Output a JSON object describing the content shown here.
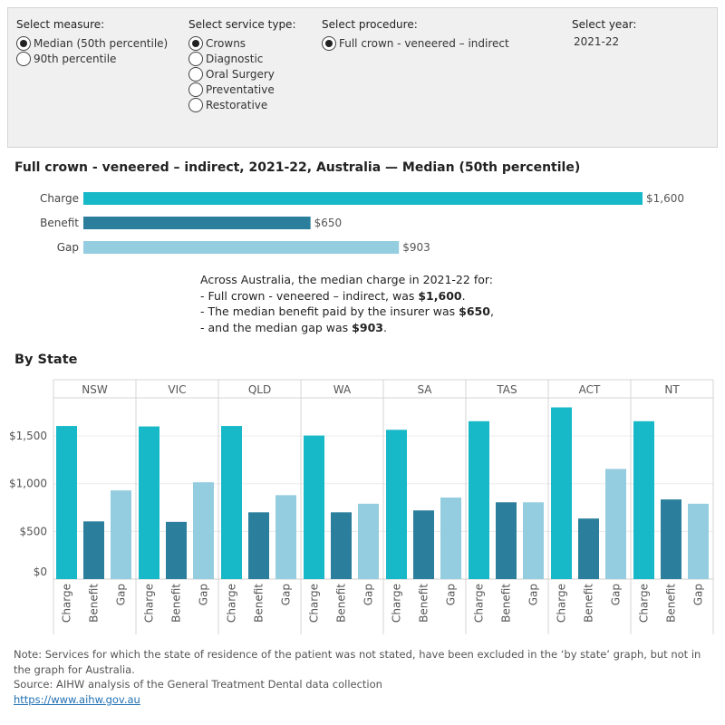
{
  "filters": {
    "measure": {
      "title": "Select measure:",
      "options": [
        "Median (50th percentile)",
        "90th percentile"
      ],
      "selected": 0
    },
    "service_type": {
      "title": "Select service type:",
      "options": [
        "Crowns",
        "Diagnostic",
        "Oral Surgery",
        "Preventative",
        "Restorative"
      ],
      "selected": 0
    },
    "procedure": {
      "title": "Select procedure:",
      "options": [
        "Full crown - veneered – indirect"
      ],
      "selected": 0
    },
    "year": {
      "title": "Select year:",
      "value": "2021-22"
    }
  },
  "colors": {
    "charge": "#17b8c8",
    "benefit": "#2b7f9c",
    "gap": "#95cde0"
  },
  "chart_data": [
    {
      "type": "bar",
      "orientation": "horizontal",
      "title": "Full crown - veneered – indirect, 2021-22, Australia  — Median (50th percentile)",
      "categories": [
        "Charge",
        "Benefit",
        "Gap"
      ],
      "values": [
        1600,
        650,
        903
      ],
      "labels": [
        "$1,600",
        "$650",
        "$903"
      ],
      "xlim": [
        0,
        1600
      ]
    },
    {
      "type": "bar",
      "title": "By State",
      "panels": [
        "NSW",
        "VIC",
        "QLD",
        "WA",
        "SA",
        "TAS",
        "ACT",
        "NT"
      ],
      "categories": [
        "Charge",
        "Benefit",
        "Gap"
      ],
      "values": [
        [
          1605,
          605,
          930
        ],
        [
          1600,
          600,
          1015
        ],
        [
          1605,
          700,
          880
        ],
        [
          1505,
          700,
          790
        ],
        [
          1565,
          720,
          855
        ],
        [
          1655,
          805,
          805
        ],
        [
          1800,
          635,
          1155
        ],
        [
          1655,
          835,
          790
        ]
      ],
      "ylim": [
        0,
        1900
      ],
      "yticks": [
        0,
        500,
        1000,
        1500
      ],
      "ytick_labels": [
        "$0",
        "$500",
        "$1,000",
        "$1,500"
      ],
      "grid": true
    }
  ],
  "summary": {
    "line1": "Across Australia, the median charge in 2021-22 for:",
    "line2_prefix": "- Full crown - veneered – indirect, was ",
    "line2_value": "$1,600",
    "line2_suffix": ".",
    "line3_prefix": "- The median benefit paid by the insurer was ",
    "line3_value": "$650",
    "line3_suffix": ",",
    "line4_prefix": "- and the median gap was ",
    "line4_value": "$903",
    "line4_suffix": "."
  },
  "notes": {
    "note": "Note: Services for which the state of residence of the patient was not stated, have been excluded in the ‘by state’ graph, but not in the graph for Australia.",
    "source": "Source: AIHW analysis of the General Treatment Dental data collection",
    "link": "https://www.aihw.gov.au"
  }
}
